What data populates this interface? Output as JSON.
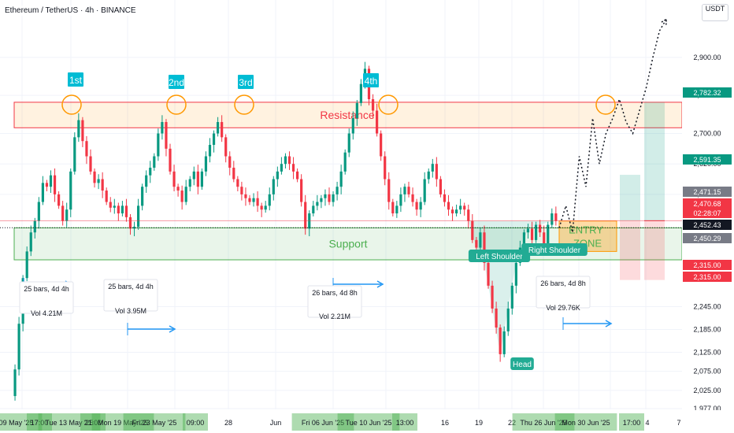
{
  "header": {
    "title": "Ethereum / TetherUS · 4h · BINANCE",
    "currency": "USDT"
  },
  "colors": {
    "up": "#089981",
    "down": "#f23645",
    "resistance": "#f23645",
    "support": "#4caf50",
    "teal": "#00bcd4",
    "blue": "#2196f3",
    "orange": "#ff9800",
    "green_label": "#22ab94"
  },
  "chart_data": {
    "type": "candlestick",
    "symbol": "Ethereum / TetherUS",
    "timeframe": "4h",
    "exchange": "BINANCE",
    "ylim": [
      1975,
      3030
    ],
    "price_ticks": [
      "2,900.00",
      "2,800.00",
      "2,700.00",
      "2,620.00",
      "2,540.00",
      "2,245.00",
      "2,185.00",
      "2,125.00",
      "2,075.00",
      "2,025.00",
      "1,977.00"
    ],
    "price_badges": [
      {
        "value": "2,782.32",
        "style": "green"
      },
      {
        "value": "2,591.35",
        "style": "green"
      },
      {
        "value": "2,471.15",
        "style": "gray"
      },
      {
        "value": "2,470.68",
        "style": "red"
      },
      {
        "value": "02:28:07",
        "style": "red"
      },
      {
        "value": "2,452.43",
        "style": "dark"
      },
      {
        "value": "2,450.29",
        "style": "gray"
      },
      {
        "value": "2,315.00",
        "style": "red"
      },
      {
        "value": "2,315.00",
        "style": "red"
      }
    ],
    "time_labels": [
      {
        "label": "Fri 09 May '25",
        "hl": true
      },
      {
        "label": "17:00",
        "hl": true
      },
      {
        "label": "Tue 13 May '25",
        "hl": true
      },
      {
        "label": "21:00",
        "hl": true
      },
      {
        "label": "Mon 19 May '25",
        "hl": true
      },
      {
        "label": "Fri 23 May '25",
        "hl": true
      },
      {
        "label": "09:00",
        "hl": true
      },
      {
        "label": "28",
        "hl": false
      },
      {
        "label": "Jun",
        "hl": false
      },
      {
        "label": "Fri 06 Jun '25",
        "hl": true
      },
      {
        "label": "Tue 10 Jun '25",
        "hl": true
      },
      {
        "label": "13:00",
        "hl": true
      },
      {
        "label": "16",
        "hl": false
      },
      {
        "label": "19",
        "hl": false
      },
      {
        "label": "22",
        "hl": false
      },
      {
        "label": "Thu 26 Jun '25",
        "hl": true
      },
      {
        "label": "Mon 30 Jun '25",
        "hl": true
      },
      {
        "label": "17:00",
        "hl": true
      },
      {
        "label": "4",
        "hl": false
      },
      {
        "label": "7",
        "hl": false
      }
    ],
    "zones": {
      "resistance": {
        "label": "Resistance",
        "top": 2782,
        "bottom": 2715
      },
      "support": {
        "label": "Support",
        "top": 2452,
        "bottom": 2368
      },
      "entry": {
        "label": [
          "ENTRY",
          "ZONE"
        ],
        "top": 2470,
        "bottom": 2390
      }
    },
    "touch_labels": [
      "1st",
      "2nd",
      "3rd",
      "4th"
    ],
    "pattern_labels": {
      "left": "Left Shoulder",
      "head": "Head",
      "right": "Right Shoulder"
    },
    "measurements": [
      {
        "bars": "25 bars, 4d 4h",
        "vol": "Vol 4.21M"
      },
      {
        "bars": "25 bars, 4d 4h",
        "vol": "Vol 3.95M"
      },
      {
        "bars": "26 bars, 4d 8h",
        "vol": "Vol 2.21M"
      },
      {
        "bars": "26 bars, 4d 8h",
        "vol": "Vol 29.76K"
      }
    ],
    "targets": {
      "take_profit": 2782.32,
      "mid_target": 2591.35,
      "entry": 2470.68,
      "stop": 2315.0
    },
    "price_path": [
      [
        0,
        2010
      ],
      [
        1,
        2080
      ],
      [
        2,
        2200
      ],
      [
        3,
        2320
      ],
      [
        4,
        2390
      ],
      [
        5,
        2440
      ],
      [
        6,
        2470
      ],
      [
        7,
        2520
      ],
      [
        8,
        2570
      ],
      [
        9,
        2560
      ],
      [
        10,
        2590
      ],
      [
        11,
        2540
      ],
      [
        12,
        2510
      ],
      [
        13,
        2470
      ],
      [
        14,
        2500
      ],
      [
        15,
        2600
      ],
      [
        16,
        2690
      ],
      [
        17,
        2735
      ],
      [
        18,
        2680
      ],
      [
        19,
        2640
      ],
      [
        20,
        2600
      ],
      [
        21,
        2570
      ],
      [
        22,
        2580
      ],
      [
        23,
        2550
      ],
      [
        24,
        2520
      ],
      [
        25,
        2505
      ],
      [
        26,
        2510
      ],
      [
        27,
        2490
      ],
      [
        28,
        2510
      ],
      [
        29,
        2480
      ],
      [
        30,
        2450
      ],
      [
        31,
        2455
      ],
      [
        32,
        2510
      ],
      [
        33,
        2560
      ],
      [
        34,
        2590
      ],
      [
        35,
        2610
      ],
      [
        36,
        2640
      ],
      [
        37,
        2700
      ],
      [
        38,
        2730
      ],
      [
        39,
        2660
      ],
      [
        40,
        2600
      ],
      [
        41,
        2560
      ],
      [
        42,
        2550
      ],
      [
        43,
        2520
      ],
      [
        44,
        2560
      ],
      [
        45,
        2580
      ],
      [
        46,
        2600
      ],
      [
        47,
        2560
      ],
      [
        48,
        2600
      ],
      [
        49,
        2640
      ],
      [
        50,
        2670
      ],
      [
        51,
        2700
      ],
      [
        52,
        2730
      ],
      [
        53,
        2690
      ],
      [
        54,
        2640
      ],
      [
        55,
        2610
      ],
      [
        56,
        2580
      ],
      [
        57,
        2560
      ],
      [
        58,
        2540
      ],
      [
        59,
        2530
      ],
      [
        60,
        2520
      ],
      [
        61,
        2530
      ],
      [
        62,
        2510
      ],
      [
        63,
        2500
      ],
      [
        64,
        2510
      ],
      [
        65,
        2540
      ],
      [
        66,
        2580
      ],
      [
        67,
        2600
      ],
      [
        68,
        2620
      ],
      [
        69,
        2640
      ],
      [
        70,
        2620
      ],
      [
        71,
        2600
      ],
      [
        72,
        2580
      ],
      [
        73,
        2520
      ],
      [
        74,
        2450
      ],
      [
        75,
        2490
      ],
      [
        76,
        2510
      ],
      [
        77,
        2520
      ],
      [
        78,
        2530
      ],
      [
        79,
        2540
      ],
      [
        80,
        2520
      ],
      [
        81,
        2540
      ],
      [
        82,
        2560
      ],
      [
        83,
        2600
      ],
      [
        84,
        2650
      ],
      [
        85,
        2700
      ],
      [
        86,
        2740
      ],
      [
        87,
        2780
      ],
      [
        88,
        2830
      ],
      [
        89,
        2870
      ],
      [
        90,
        2790
      ],
      [
        91,
        2760
      ],
      [
        92,
        2700
      ],
      [
        93,
        2640
      ],
      [
        94,
        2580
      ],
      [
        95,
        2520
      ],
      [
        96,
        2490
      ],
      [
        97,
        2510
      ],
      [
        98,
        2540
      ],
      [
        99,
        2560
      ],
      [
        100,
        2540
      ],
      [
        101,
        2520
      ],
      [
        102,
        2500
      ],
      [
        103,
        2520
      ],
      [
        104,
        2580
      ],
      [
        105,
        2600
      ],
      [
        106,
        2620
      ],
      [
        107,
        2580
      ],
      [
        108,
        2540
      ],
      [
        109,
        2520
      ],
      [
        110,
        2500
      ],
      [
        111,
        2490
      ],
      [
        112,
        2500
      ],
      [
        113,
        2510
      ],
      [
        114,
        2500
      ],
      [
        115,
        2470
      ],
      [
        116,
        2420
      ],
      [
        117,
        2400
      ],
      [
        118,
        2440
      ],
      [
        119,
        2360
      ],
      [
        120,
        2300
      ],
      [
        121,
        2240
      ],
      [
        122,
        2190
      ],
      [
        123,
        2120
      ],
      [
        124,
        2180
      ],
      [
        125,
        2240
      ],
      [
        126,
        2300
      ],
      [
        127,
        2360
      ],
      [
        128,
        2400
      ],
      [
        129,
        2440
      ],
      [
        130,
        2450
      ],
      [
        131,
        2420
      ],
      [
        132,
        2460
      ],
      [
        133,
        2440
      ],
      [
        134,
        2410
      ],
      [
        135,
        2460
      ],
      [
        136,
        2490
      ],
      [
        137,
        2470
      ]
    ],
    "projection": [
      2452,
      2510,
      2440,
      2640,
      2560,
      2740,
      2620,
      2700,
      2740,
      2790,
      2730,
      2700,
      2760,
      2820,
      2900,
      2970,
      3000
    ]
  }
}
